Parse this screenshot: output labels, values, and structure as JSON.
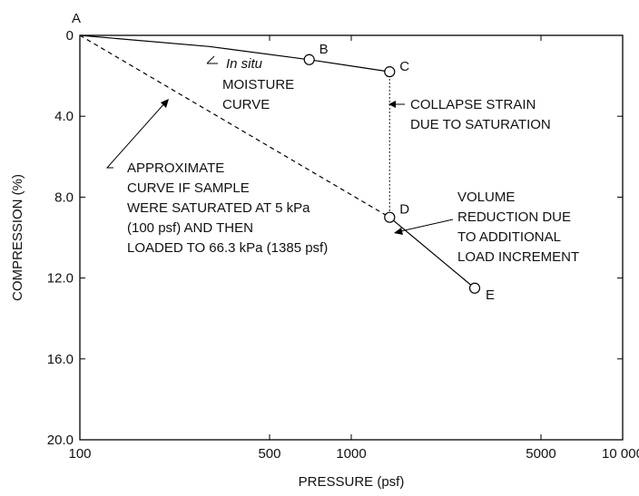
{
  "chart_data": {
    "type": "line",
    "xlabel": "PRESSURE (psf)",
    "ylabel": "COMPRESSION (%)",
    "x_scale": "log",
    "xlim": [
      100,
      10000
    ],
    "ylim": [
      0,
      20
    ],
    "y_inverted": true,
    "grid": false,
    "x_ticks": [
      {
        "value": 100,
        "label": "100"
      },
      {
        "value": 500,
        "label": "500"
      },
      {
        "value": 1000,
        "label": "1000"
      },
      {
        "value": 5000,
        "label": "5000"
      },
      {
        "value": 10000,
        "label": "10 000"
      }
    ],
    "y_ticks": [
      {
        "value": 0,
        "label": "0"
      },
      {
        "value": 4,
        "label": "4.0"
      },
      {
        "value": 8,
        "label": "8.0"
      },
      {
        "value": 12,
        "label": "12.0"
      },
      {
        "value": 16,
        "label": "16.0"
      },
      {
        "value": 20,
        "label": "20.0"
      }
    ],
    "points": [
      {
        "id": "A",
        "label": "A",
        "x": 100,
        "y": 0,
        "marker": false
      },
      {
        "id": "B",
        "label": "B",
        "x": 700,
        "y": 1.2,
        "marker": true
      },
      {
        "id": "C",
        "label": "C",
        "x": 1385,
        "y": 1.8,
        "marker": true
      },
      {
        "id": "D",
        "label": "D",
        "x": 1385,
        "y": 9.0,
        "marker": true
      },
      {
        "id": "E",
        "label": "E",
        "x": 2850,
        "y": 12.5,
        "marker": true
      }
    ],
    "series": [
      {
        "style": "solid",
        "x": [
          100,
          300,
          700,
          1385
        ],
        "y": [
          0,
          0.55,
          1.2,
          1.8
        ]
      },
      {
        "style": "dotted",
        "x": [
          1385,
          1385
        ],
        "y": [
          1.8,
          9.0
        ]
      },
      {
        "style": "dashed",
        "x": [
          100,
          1385
        ],
        "y": [
          0,
          9.0
        ]
      },
      {
        "style": "solid",
        "x": [
          1385,
          2850
        ],
        "y": [
          9.0,
          12.5
        ]
      }
    ],
    "annotations": {
      "insitu_italic": "In situ",
      "insitu_lines": [
        "MOISTURE",
        "CURVE"
      ],
      "collapse_lines": [
        "COLLAPSE STRAIN",
        "DUE TO SATURATION"
      ],
      "approx_lines": [
        "APPROXIMATE",
        "CURVE IF SAMPLE",
        "WERE SATURATED AT 5 kPa",
        "(100 psf) AND THEN",
        "LOADED TO 66.3 kPa (1385 psf)"
      ],
      "volume_lines": [
        "VOLUME",
        "REDUCTION DUE",
        "TO ADDITIONAL",
        "LOAD INCREMENT"
      ]
    }
  }
}
